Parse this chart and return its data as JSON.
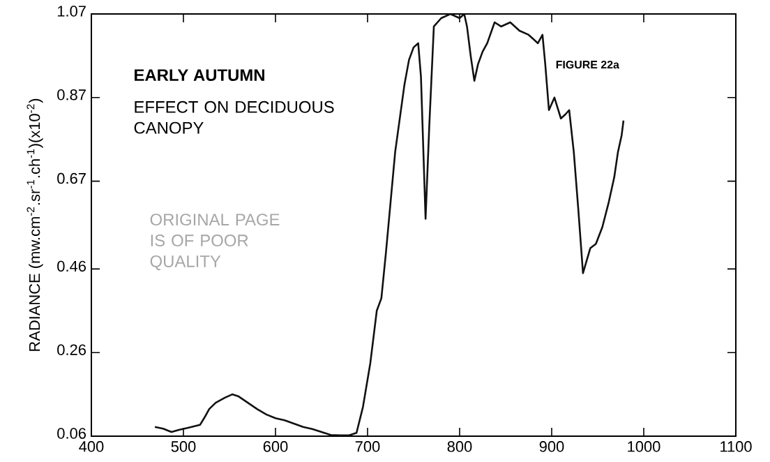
{
  "chart_data": {
    "type": "line",
    "ylabel": "RADIANCE (mw.cm$^{-2}$.sr$^{-1}$.ch$^{-1}$)(x10$^{-2}$)",
    "annotations": [
      "EARLY AUTUMN",
      "EFFECT ON DECIDUOUS CANOPY",
      "ORIGINAL PAGE IS OF POOR QUALITY",
      "FIGURE 22a"
    ],
    "xlim": [
      400,
      1100
    ],
    "xticks": [
      400,
      500,
      600,
      700,
      800,
      900,
      1000,
      1100
    ],
    "ylim": [
      0.06,
      1.07
    ],
    "yticks": [
      0.06,
      0.26,
      0.46,
      0.67,
      0.87,
      1.07
    ],
    "grid": false,
    "marker": "none",
    "line_style": "solid",
    "series": [
      {
        "color": "#111111",
        "x": [
          469,
          478,
          487,
          495,
          505,
          518,
          523,
          528,
          535,
          545,
          553,
          560,
          570,
          580,
          590,
          600,
          610,
          620,
          630,
          640,
          650,
          660,
          670,
          680,
          688,
          695,
          703,
          710,
          715,
          720,
          725,
          730,
          735,
          740,
          745,
          750,
          755,
          758,
          763,
          767,
          772,
          780,
          790,
          800,
          805,
          808,
          812,
          816,
          820,
          825,
          830,
          838,
          845,
          855,
          865,
          875,
          885,
          890,
          893,
          897,
          903,
          910,
          915,
          919,
          924,
          929,
          934,
          938,
          942,
          948,
          955,
          962,
          968,
          972,
          976,
          978
        ],
        "values": [
          0.082,
          0.078,
          0.07,
          0.075,
          0.08,
          0.087,
          0.105,
          0.125,
          0.14,
          0.152,
          0.16,
          0.155,
          0.14,
          0.125,
          0.112,
          0.103,
          0.098,
          0.09,
          0.082,
          0.077,
          0.07,
          0.063,
          0.062,
          0.062,
          0.068,
          0.13,
          0.235,
          0.36,
          0.39,
          0.5,
          0.62,
          0.74,
          0.82,
          0.9,
          0.96,
          0.99,
          1.0,
          0.92,
          0.58,
          0.8,
          1.04,
          1.06,
          1.07,
          1.06,
          1.07,
          1.04,
          0.97,
          0.91,
          0.95,
          0.98,
          1.0,
          1.05,
          1.04,
          1.05,
          1.03,
          1.02,
          1.0,
          1.02,
          0.95,
          0.84,
          0.87,
          0.82,
          0.83,
          0.84,
          0.74,
          0.6,
          0.45,
          0.48,
          0.51,
          0.52,
          0.56,
          0.62,
          0.68,
          0.74,
          0.78,
          0.815
        ]
      }
    ]
  }
}
